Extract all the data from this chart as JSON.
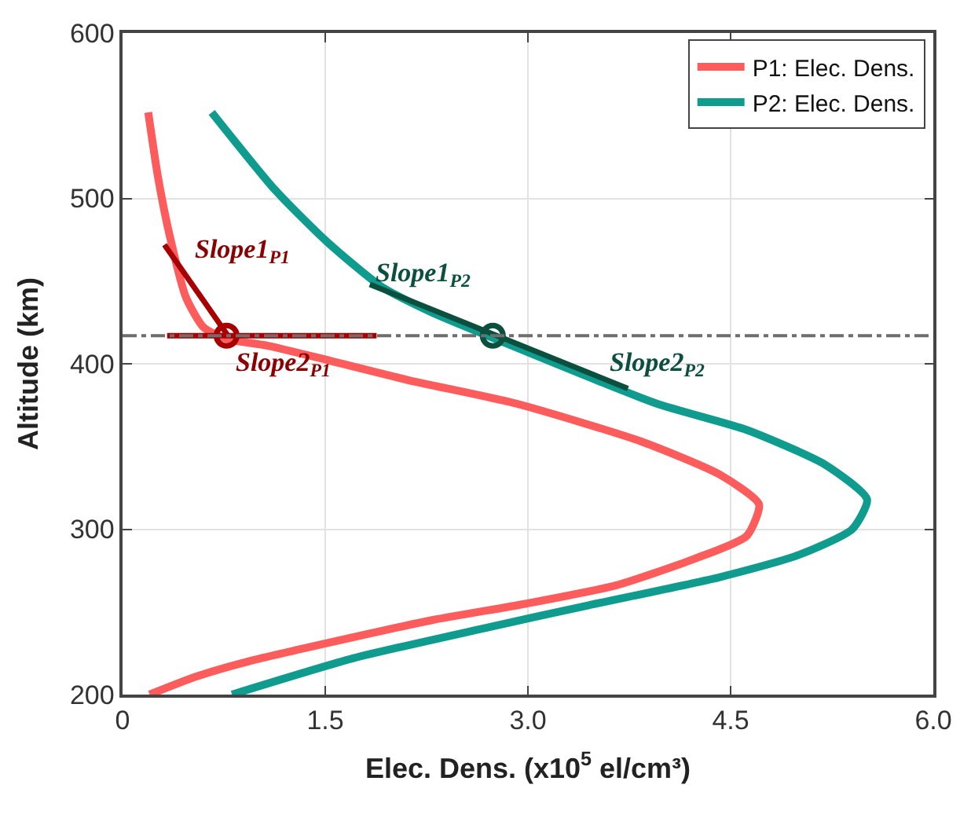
{
  "chart_data": {
    "type": "line",
    "xlabel": "Elec. Dens. (x10$^{5}$ el/cm³)",
    "ylabel": "Altitude (km)",
    "xlim": [
      0,
      6
    ],
    "ylim": [
      200,
      600
    ],
    "xticks": [
      0,
      1.5,
      {
        "value": 3,
        "label": "3.0"
      },
      4.5,
      {
        "value": 6,
        "label": "6.0"
      }
    ],
    "yticks": [
      200,
      300,
      400,
      500,
      600
    ],
    "grid": true,
    "legend": "top right",
    "series": [
      {
        "name": "P1: Elec. Dens.",
        "color": "#fd5c5c",
        "x": [
          0.19,
          0.26,
          0.35,
          0.47,
          0.6,
          0.77,
          1.07,
          1.53,
          2.12,
          2.91,
          3.84,
          4.42,
          4.71,
          4.62,
          4.23,
          3.65,
          2.99,
          2.29,
          1.51,
          0.93,
          0.55,
          0.2
        ],
        "values": [
          552,
          514,
          477,
          440,
          422,
          415,
          411,
          402,
          390,
          376,
          353,
          333,
          315,
          296,
          282,
          266,
          255,
          245,
          231,
          220,
          211,
          200
        ]
      },
      {
        "name": "P2: Elec. Dens.",
        "color": "#109b8f",
        "x": [
          0.66,
          1.13,
          1.51,
          1.91,
          2.29,
          2.76,
          3.95,
          4.62,
          5.2,
          5.51,
          5.4,
          4.99,
          4.42,
          3.45,
          2.67,
          1.71,
          0.81
        ],
        "values": [
          552,
          505,
          474,
          447,
          431,
          415,
          376,
          360,
          339,
          318,
          300,
          284,
          271,
          254,
          240,
          222,
          200
        ]
      },
      {
        "color": "#a80000",
        "x": [
          0.31,
          0.78
        ],
        "values": [
          472,
          417
        ]
      },
      {
        "color": "#a80000",
        "x": [
          0.33,
          1.88
        ],
        "values": [
          417,
          417
        ]
      },
      {
        "color": "#0b4f3f",
        "x": [
          1.83,
          3.74
        ],
        "values": [
          448,
          385
        ]
      },
      {
        "type": "scatter",
        "marker": "circle",
        "color": "#a80000",
        "x": [
          0.77
        ],
        "values": [
          417
        ]
      },
      {
        "type": "scatter",
        "marker": "circle",
        "color": "#0b4f3f",
        "x": [
          2.74
        ],
        "values": [
          417
        ]
      }
    ],
    "ref_lines": [
      {
        "axis": "y",
        "value": 417,
        "color": "#6e6e6e",
        "line_style": "dashed"
      }
    ],
    "annotations": [
      "Slope1$_{P1}$",
      "Slope2$_{P1}$",
      "Slope1$_{P2}$",
      "Slope2$_{P2}$"
    ]
  }
}
